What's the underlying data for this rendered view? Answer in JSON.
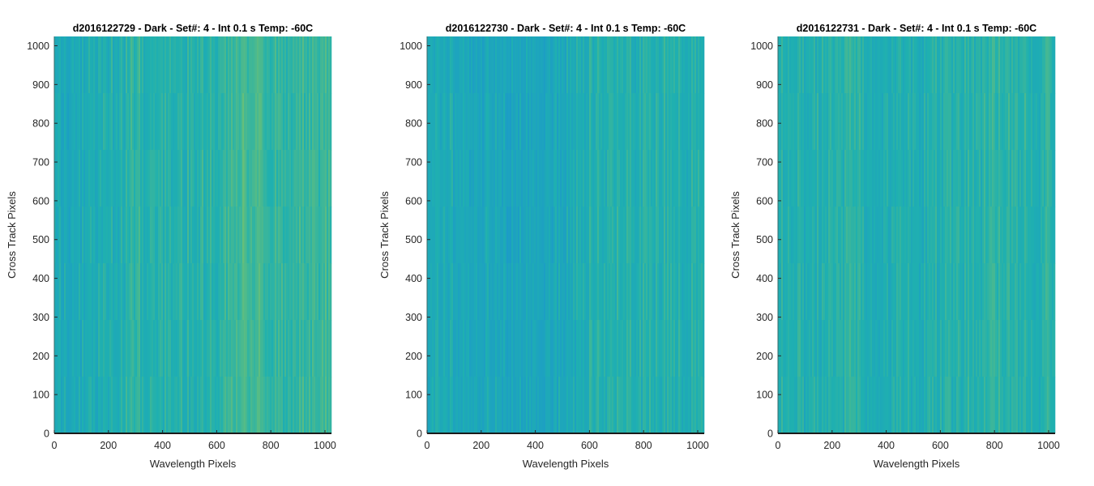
{
  "figure": {
    "background": "#ffffff"
  },
  "chart_data": [
    {
      "type": "heatmap",
      "title": "d2016122729 - Dark - Set#: 4 - Int 0.1 s Temp: -60C",
      "xlabel": "Wavelength Pixels",
      "ylabel": "Cross Track Pixels",
      "xlim": [
        0,
        1024
      ],
      "ylim": [
        0,
        1024
      ],
      "xticks": [
        0,
        200,
        400,
        600,
        800,
        1000
      ],
      "yticks": [
        0,
        100,
        200,
        300,
        400,
        500,
        600,
        700,
        800,
        900,
        1000
      ],
      "colormap": "parula",
      "colors": {
        "low": "#1a8fd6",
        "mid": "#1fb0b0",
        "high": "#8fc85a"
      },
      "grid": false,
      "column_profile": [
        {
          "x": 0,
          "level": 0.42
        },
        {
          "x": 100,
          "level": 0.4
        },
        {
          "x": 200,
          "level": 0.46
        },
        {
          "x": 300,
          "level": 0.56
        },
        {
          "x": 400,
          "level": 0.5
        },
        {
          "x": 500,
          "level": 0.52
        },
        {
          "x": 600,
          "level": 0.56
        },
        {
          "x": 700,
          "level": 0.66
        },
        {
          "x": 800,
          "level": 0.62
        },
        {
          "x": 900,
          "level": 0.6
        },
        {
          "x": 1024,
          "level": 0.62
        }
      ]
    },
    {
      "type": "heatmap",
      "title": "d2016122730 - Dark - Set#: 4 - Int 0.1 s Temp: -60C",
      "xlabel": "Wavelength Pixels",
      "ylabel": "Cross Track Pixels",
      "xlim": [
        0,
        1024
      ],
      "ylim": [
        0,
        1024
      ],
      "xticks": [
        0,
        200,
        400,
        600,
        800,
        1000
      ],
      "yticks": [
        0,
        100,
        200,
        300,
        400,
        500,
        600,
        700,
        800,
        900,
        1000
      ],
      "colormap": "parula",
      "colors": {
        "low": "#1a8fd6",
        "mid": "#1fb0b0",
        "high": "#8fc85a"
      },
      "grid": false,
      "column_profile": [
        {
          "x": 0,
          "level": 0.44
        },
        {
          "x": 100,
          "level": 0.42
        },
        {
          "x": 200,
          "level": 0.38
        },
        {
          "x": 300,
          "level": 0.36
        },
        {
          "x": 400,
          "level": 0.34
        },
        {
          "x": 500,
          "level": 0.4
        },
        {
          "x": 600,
          "level": 0.5
        },
        {
          "x": 700,
          "level": 0.52
        },
        {
          "x": 800,
          "level": 0.5
        },
        {
          "x": 900,
          "level": 0.52
        },
        {
          "x": 1024,
          "level": 0.5
        }
      ]
    },
    {
      "type": "heatmap",
      "title": "d2016122731 - Dark - Set#: 4 - Int 0.1 s Temp: -60C",
      "xlabel": "Wavelength Pixels",
      "ylabel": "Cross Track Pixels",
      "xlim": [
        0,
        1024
      ],
      "ylim": [
        0,
        1024
      ],
      "xticks": [
        0,
        200,
        400,
        600,
        800,
        1000
      ],
      "yticks": [
        0,
        100,
        200,
        300,
        400,
        500,
        600,
        700,
        800,
        900,
        1000
      ],
      "colormap": "parula",
      "colors": {
        "low": "#1a8fd6",
        "mid": "#1fb0b0",
        "high": "#8fc85a"
      },
      "grid": false,
      "column_profile": [
        {
          "x": 0,
          "level": 0.5
        },
        {
          "x": 100,
          "level": 0.48
        },
        {
          "x": 200,
          "level": 0.52
        },
        {
          "x": 300,
          "level": 0.52
        },
        {
          "x": 400,
          "level": 0.48
        },
        {
          "x": 500,
          "level": 0.46
        },
        {
          "x": 600,
          "level": 0.5
        },
        {
          "x": 700,
          "level": 0.52
        },
        {
          "x": 800,
          "level": 0.56
        },
        {
          "x": 900,
          "level": 0.54
        },
        {
          "x": 1024,
          "level": 0.52
        }
      ]
    }
  ]
}
